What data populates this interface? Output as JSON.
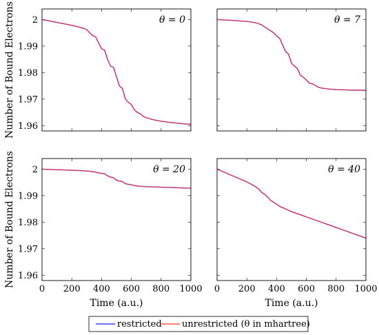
{
  "figure": {
    "legend": {
      "entries": [
        {
          "label": "restricted",
          "color": "#1a1aff"
        },
        {
          "label": "unrestricted (θ in mhartree)",
          "color": "#ff3333"
        }
      ]
    }
  },
  "chart_data": [
    {
      "type": "line",
      "title": "θ = 0",
      "xlabel": "",
      "ylabel": "Number of Bound Electrons",
      "xlim": [
        0,
        1000
      ],
      "ylim": [
        1.958,
        2.004
      ],
      "x_ticks": [],
      "y_ticks": [
        "2",
        "1.99",
        "1.98",
        "1.97",
        "1.96"
      ],
      "grid": false,
      "series": [
        {
          "name": "restricted",
          "color": "#1a1aff",
          "x": [
            0,
            50,
            100,
            150,
            200,
            240,
            260,
            280,
            300,
            320,
            340,
            360,
            380,
            400,
            420,
            440,
            460,
            480,
            500,
            520,
            540,
            560,
            580,
            600,
            620,
            640,
            660,
            680,
            700,
            750,
            800,
            850,
            900,
            950,
            1000
          ],
          "y": [
            2.0,
            1.9995,
            1.9989,
            1.9984,
            1.9978,
            1.9973,
            1.997,
            1.9967,
            1.9962,
            1.995,
            1.994,
            1.9935,
            1.9912,
            1.989,
            1.9885,
            1.985,
            1.9825,
            1.982,
            1.9785,
            1.975,
            1.974,
            1.97,
            1.9688,
            1.968,
            1.966,
            1.965,
            1.9645,
            1.9635,
            1.963,
            1.9622,
            1.9617,
            1.9613,
            1.961,
            1.9607,
            1.9605
          ]
        },
        {
          "name": "unrestricted (θ in mhartree)",
          "color": "#ff3333",
          "x": [
            0,
            50,
            100,
            150,
            200,
            240,
            260,
            280,
            300,
            320,
            340,
            360,
            380,
            400,
            420,
            440,
            460,
            480,
            500,
            520,
            540,
            560,
            580,
            600,
            620,
            640,
            660,
            680,
            700,
            750,
            800,
            850,
            900,
            950,
            1000
          ],
          "y": [
            2.0,
            1.9995,
            1.9989,
            1.9984,
            1.9978,
            1.9973,
            1.997,
            1.9967,
            1.9962,
            1.995,
            1.994,
            1.9935,
            1.9912,
            1.989,
            1.9885,
            1.985,
            1.9825,
            1.982,
            1.9785,
            1.975,
            1.974,
            1.97,
            1.9688,
            1.968,
            1.966,
            1.965,
            1.9645,
            1.9635,
            1.963,
            1.9622,
            1.9617,
            1.9613,
            1.961,
            1.9607,
            1.9605
          ]
        }
      ]
    },
    {
      "type": "line",
      "title": "θ = 7",
      "xlabel": "",
      "ylabel": "",
      "xlim": [
        0,
        1000
      ],
      "ylim": [
        1.958,
        2.004
      ],
      "x_ticks": [],
      "y_ticks": [],
      "grid": false,
      "series": [
        {
          "name": "restricted",
          "color": "#1a1aff",
          "x": [
            0,
            100,
            200,
            260,
            300,
            330,
            360,
            380,
            400,
            420,
            440,
            460,
            480,
            500,
            520,
            540,
            560,
            580,
            600,
            620,
            640,
            660,
            680,
            700,
            750,
            800,
            850,
            900,
            950,
            1000
          ],
          "y": [
            2.0,
            1.9997,
            1.9993,
            1.9988,
            1.998,
            1.9968,
            1.9958,
            1.995,
            1.9938,
            1.993,
            1.9905,
            1.988,
            1.987,
            1.9835,
            1.9825,
            1.9815,
            1.979,
            1.9782,
            1.9772,
            1.976,
            1.9758,
            1.9752,
            1.9745,
            1.9742,
            1.9738,
            1.9736,
            1.9735,
            1.9734,
            1.9734,
            1.9733
          ]
        },
        {
          "name": "unrestricted (θ in mhartree)",
          "color": "#ff3333",
          "x": [
            0,
            100,
            200,
            260,
            300,
            330,
            360,
            380,
            400,
            420,
            440,
            460,
            480,
            500,
            520,
            540,
            560,
            580,
            600,
            620,
            640,
            660,
            680,
            700,
            750,
            800,
            850,
            900,
            950,
            1000
          ],
          "y": [
            2.0,
            1.9997,
            1.9993,
            1.9988,
            1.998,
            1.9968,
            1.9958,
            1.995,
            1.9938,
            1.993,
            1.9905,
            1.988,
            1.987,
            1.9835,
            1.9825,
            1.9815,
            1.979,
            1.9782,
            1.9772,
            1.976,
            1.9758,
            1.9752,
            1.9745,
            1.9742,
            1.9738,
            1.9736,
            1.9735,
            1.9734,
            1.9734,
            1.9733
          ]
        }
      ]
    },
    {
      "type": "line",
      "title": "θ = 20",
      "xlabel": "Time (a.u.)",
      "ylabel": "Number of Bound Electrons",
      "xlim": [
        0,
        1000
      ],
      "ylim": [
        1.958,
        2.004
      ],
      "x_ticks": [
        "0",
        "200",
        "400",
        "600",
        "800",
        "1000"
      ],
      "y_ticks": [
        "2",
        "1.99",
        "1.98",
        "1.97",
        "1.96"
      ],
      "grid": false,
      "series": [
        {
          "name": "restricted",
          "color": "#1a1aff",
          "x": [
            0,
            100,
            200,
            300,
            350,
            380,
            400,
            420,
            440,
            460,
            480,
            500,
            520,
            540,
            560,
            580,
            600,
            620,
            650,
            700,
            750,
            800,
            900,
            1000
          ],
          "y": [
            2.0,
            1.9998,
            1.9996,
            1.9993,
            1.999,
            1.9986,
            1.9984,
            1.9983,
            1.9975,
            1.997,
            1.9968,
            1.9958,
            1.9955,
            1.9953,
            1.9945,
            1.9943,
            1.9941,
            1.9938,
            1.9936,
            1.9934,
            1.9933,
            1.9932,
            1.993,
            1.9928
          ]
        },
        {
          "name": "unrestricted (θ in mhartree)",
          "color": "#ff3333",
          "x": [
            0,
            100,
            200,
            300,
            350,
            380,
            400,
            420,
            440,
            460,
            480,
            500,
            520,
            540,
            560,
            580,
            600,
            620,
            650,
            700,
            750,
            800,
            900,
            1000
          ],
          "y": [
            2.0,
            1.9998,
            1.9996,
            1.9993,
            1.999,
            1.9986,
            1.9984,
            1.9983,
            1.9975,
            1.997,
            1.9968,
            1.9958,
            1.9955,
            1.9953,
            1.9945,
            1.9943,
            1.9941,
            1.9938,
            1.9936,
            1.9934,
            1.9933,
            1.9932,
            1.993,
            1.9928
          ]
        }
      ]
    },
    {
      "type": "line",
      "title": "θ = 40",
      "xlabel": "Time (a.u.)",
      "ylabel": "",
      "xlim": [
        0,
        1000
      ],
      "ylim": [
        1.958,
        2.004
      ],
      "x_ticks": [
        "0",
        "200",
        "400",
        "600",
        "800",
        "1000"
      ],
      "y_ticks": [],
      "grid": false,
      "series": [
        {
          "name": "restricted",
          "color": "#1a1aff",
          "x": [
            0,
            50,
            100,
            150,
            200,
            240,
            260,
            280,
            300,
            320,
            340,
            360,
            380,
            400,
            420,
            440,
            460,
            500,
            550,
            600,
            650,
            700,
            750,
            800,
            850,
            900,
            950,
            1000
          ],
          "y": [
            2.0,
            1.9988,
            1.9976,
            1.9964,
            1.9952,
            1.994,
            1.9933,
            1.9925,
            1.9912,
            1.9905,
            1.9895,
            1.9882,
            1.9875,
            1.9868,
            1.986,
            1.9855,
            1.985,
            1.984,
            1.983,
            1.982,
            1.981,
            1.98,
            1.979,
            1.978,
            1.977,
            1.976,
            1.975,
            1.974
          ]
        },
        {
          "name": "unrestricted (θ in mhartree)",
          "color": "#ff3333",
          "x": [
            0,
            50,
            100,
            150,
            200,
            240,
            260,
            280,
            300,
            320,
            340,
            360,
            380,
            400,
            420,
            440,
            460,
            500,
            550,
            600,
            650,
            700,
            750,
            800,
            850,
            900,
            950,
            1000
          ],
          "y": [
            2.0,
            1.9988,
            1.9976,
            1.9964,
            1.9952,
            1.994,
            1.9933,
            1.9925,
            1.9912,
            1.9905,
            1.9895,
            1.9882,
            1.9875,
            1.9868,
            1.986,
            1.9855,
            1.985,
            1.984,
            1.983,
            1.982,
            1.981,
            1.98,
            1.979,
            1.978,
            1.977,
            1.976,
            1.975,
            1.974
          ]
        }
      ]
    }
  ]
}
